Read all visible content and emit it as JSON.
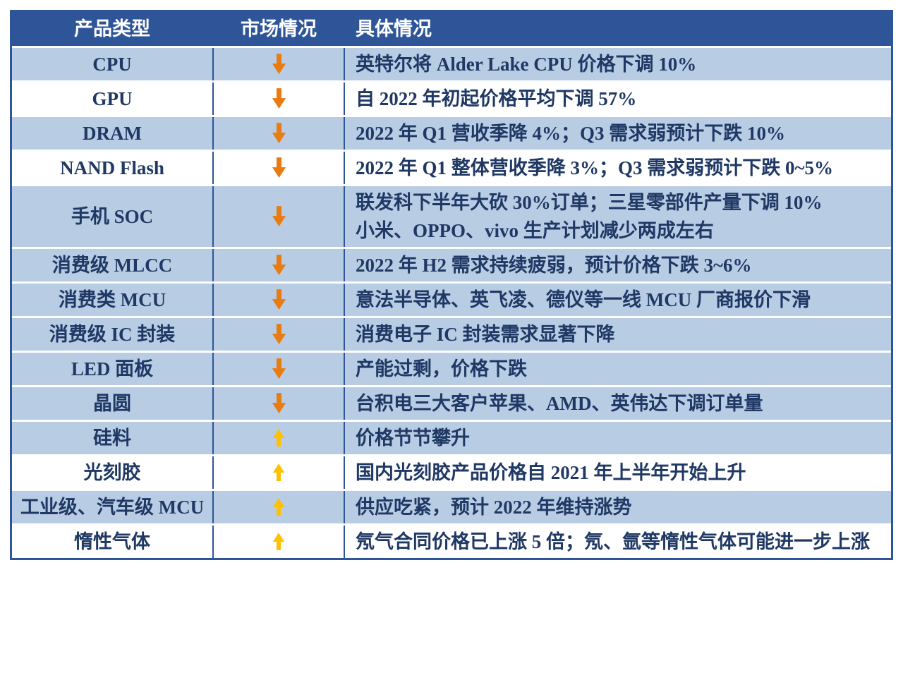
{
  "table": {
    "columns": [
      {
        "label": "产品类型"
      },
      {
        "label": "市场情况"
      },
      {
        "label": "具体情况"
      }
    ],
    "rows": [
      {
        "product": "CPU",
        "trend": "down",
        "detail": "英特尔将 Alder Lake CPU 价格下调 10%",
        "shade": "blue"
      },
      {
        "product": "GPU",
        "trend": "down",
        "detail": "自 2022 年初起价格平均下调 57%",
        "shade": "white"
      },
      {
        "product": "DRAM",
        "trend": "down",
        "detail": "2022 年 Q1 营收季降 4%；Q3 需求弱预计下跌 10%",
        "shade": "blue"
      },
      {
        "product": "NAND Flash",
        "trend": "down",
        "detail": "2022 年 Q1 整体营收季降 3%；Q3 需求弱预计下跌 0~5%",
        "shade": "white"
      },
      {
        "product": "手机 SOC",
        "trend": "down",
        "detail": "联发科下半年大砍 30%订单；三星零部件产量下调 10%\n小米、OPPO、vivo 生产计划减少两成左右",
        "shade": "blue"
      },
      {
        "product": "消费级 MLCC",
        "trend": "down",
        "detail": "2022 年 H2 需求持续疲弱，预计价格下跌 3~6%",
        "shade": "blue"
      },
      {
        "product": "消费类 MCU",
        "trend": "down",
        "detail": "意法半导体、英飞凌、德仪等一线 MCU 厂商报价下滑",
        "shade": "blue"
      },
      {
        "product": "消费级 IC 封装",
        "trend": "down",
        "detail": "消费电子 IC 封装需求显著下降",
        "shade": "blue"
      },
      {
        "product": "LED 面板",
        "trend": "down",
        "detail": "产能过剩，价格下跌",
        "shade": "blue"
      },
      {
        "product": "晶圆",
        "trend": "down",
        "detail": "台积电三大客户苹果、AMD、英伟达下调订单量",
        "shade": "blue"
      },
      {
        "product": "硅料",
        "trend": "up",
        "detail": "价格节节攀升",
        "shade": "blue"
      },
      {
        "product": "光刻胶",
        "trend": "up",
        "detail": "国内光刻胶产品价格自 2021 年上半年开始上升",
        "shade": "white"
      },
      {
        "product": "工业级、汽车级 MCU",
        "trend": "up",
        "detail": "供应吃紧，预计 2022 年维持涨势",
        "shade": "blue"
      },
      {
        "product": "惰性气体",
        "trend": "up",
        "detail": "氖气合同价格已上涨 5 倍；氖、氩等惰性气体可能进一步上涨",
        "shade": "white"
      }
    ],
    "colors": {
      "header_bg": "#2e5597",
      "header_text": "#ffffff",
      "row_blue": "#b8cce4",
      "row_white": "#ffffff",
      "body_text": "#1f3864",
      "border": "#2e5597",
      "grid_line": "#ffffff",
      "arrow_down": "#e97c11",
      "arrow_up": "#ffc000"
    }
  }
}
